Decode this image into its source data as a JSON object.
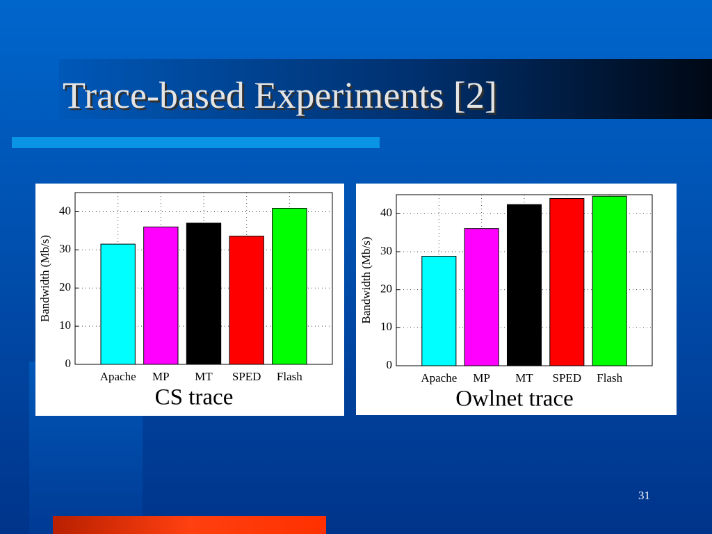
{
  "slide": {
    "title": "Trace-based Experiments [2]",
    "page_number": "31"
  },
  "chart_data": [
    {
      "type": "bar",
      "ylabel": "Bandwidth (Mb/s)",
      "xlabel": "CS trace",
      "categories": [
        "Apache",
        "MP",
        "MT",
        "SPED",
        "Flash"
      ],
      "values": [
        31.5,
        36,
        37,
        33.6,
        40.9
      ],
      "colors": [
        "#00ffff",
        "#ff00ff",
        "#000000",
        "#ff0000",
        "#00ff00"
      ],
      "ylim": [
        0,
        45
      ],
      "yticks": [
        0,
        10,
        20,
        30,
        40
      ],
      "grid": true
    },
    {
      "type": "bar",
      "ylabel": "Bandwidth (Mb/s)",
      "xlabel": "Owlnet trace",
      "categories": [
        "Apache",
        "MP",
        "MT",
        "SPED",
        "Flash"
      ],
      "values": [
        28.8,
        36.1,
        42.4,
        44,
        44.6
      ],
      "colors": [
        "#00ffff",
        "#ff00ff",
        "#000000",
        "#ff0000",
        "#00ff00"
      ],
      "ylim": [
        0,
        45
      ],
      "yticks": [
        0,
        10,
        20,
        30,
        40
      ],
      "grid": true
    }
  ]
}
